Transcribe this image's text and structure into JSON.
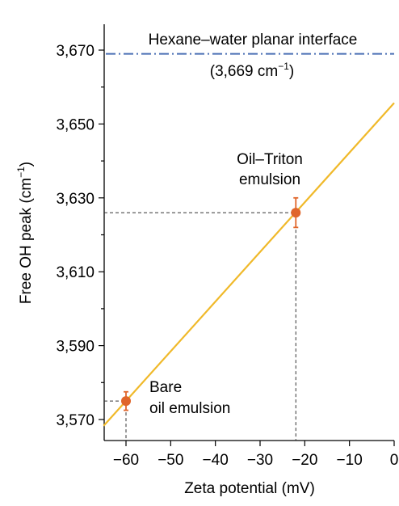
{
  "chart_data": {
    "type": "scatter",
    "xlabel": "Zeta potential (mV)",
    "ylabel_main": "Free OH peak (cm",
    "ylabel_sup": "−1",
    "ylabel_close": ")",
    "xlim": [
      -65,
      0
    ],
    "ylim": [
      3566,
      3676
    ],
    "x_ticks": [
      -60,
      -50,
      -40,
      -30,
      -20,
      -10,
      0
    ],
    "x_tick_labels": [
      "−60",
      "−50",
      "−40",
      "−30",
      "−20",
      "−10",
      "0"
    ],
    "y_major_ticks": [
      3570,
      3590,
      3610,
      3630,
      3650,
      3670
    ],
    "y_major_tick_labels": [
      "3,570",
      "3,590",
      "3,610",
      "3,630",
      "3,650",
      "3,670"
    ],
    "y_minor_ticks": [
      3580,
      3600,
      3620,
      3640,
      3660
    ],
    "points": [
      {
        "name": "Bare oil emulsion",
        "x": -60,
        "y": 3575,
        "err": 2.5,
        "color": "#e0652a"
      },
      {
        "name": "Oil–Triton emulsion",
        "x": -22,
        "y": 3626,
        "err": 4,
        "color": "#e0652a"
      }
    ],
    "fit_line": {
      "x": [
        -65,
        0
      ],
      "y": [
        3568.3,
        3655.7
      ],
      "color": "#f0b92a"
    },
    "reference_line": {
      "y": 3669,
      "color": "#4a6fb5"
    },
    "annotations": {
      "reference_title": "Hexane–water planar interface",
      "reference_value": "(3,669 cm",
      "reference_value_sup": "−1",
      "reference_value_close": ")",
      "triton_line1": "Oil–Triton",
      "triton_line2": "emulsion",
      "bare_line1": "Bare",
      "bare_line2": "oil emulsion"
    }
  }
}
